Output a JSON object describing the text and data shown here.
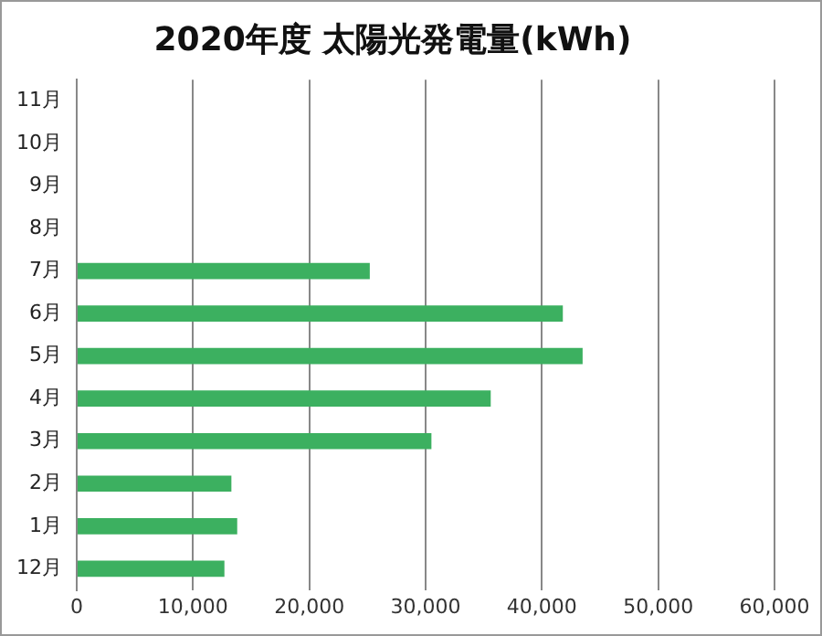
{
  "chart_data": {
    "type": "bar",
    "orientation": "horizontal",
    "title": "2020年度 太陽光発電量(kWh)",
    "categories": [
      "11月",
      "10月",
      "9月",
      "8月",
      "7月",
      "6月",
      "5月",
      "4月",
      "3月",
      "2月",
      "1月",
      "12月"
    ],
    "values": [
      null,
      null,
      null,
      null,
      25200,
      41800,
      43500,
      35600,
      30500,
      13300,
      13800,
      12700
    ],
    "color": "#3cb060",
    "xlim": [
      0,
      60000
    ],
    "xticks": [
      {
        "value": 0,
        "label": "0"
      },
      {
        "value": 10000,
        "label": "10,000"
      },
      {
        "value": 20000,
        "label": "20,000"
      },
      {
        "value": 30000,
        "label": "30,000"
      },
      {
        "value": 40000,
        "label": "40,000"
      },
      {
        "value": 50000,
        "label": "50,000"
      },
      {
        "value": 60000,
        "label": "60,000"
      }
    ],
    "grid": "x",
    "legend": false
  }
}
